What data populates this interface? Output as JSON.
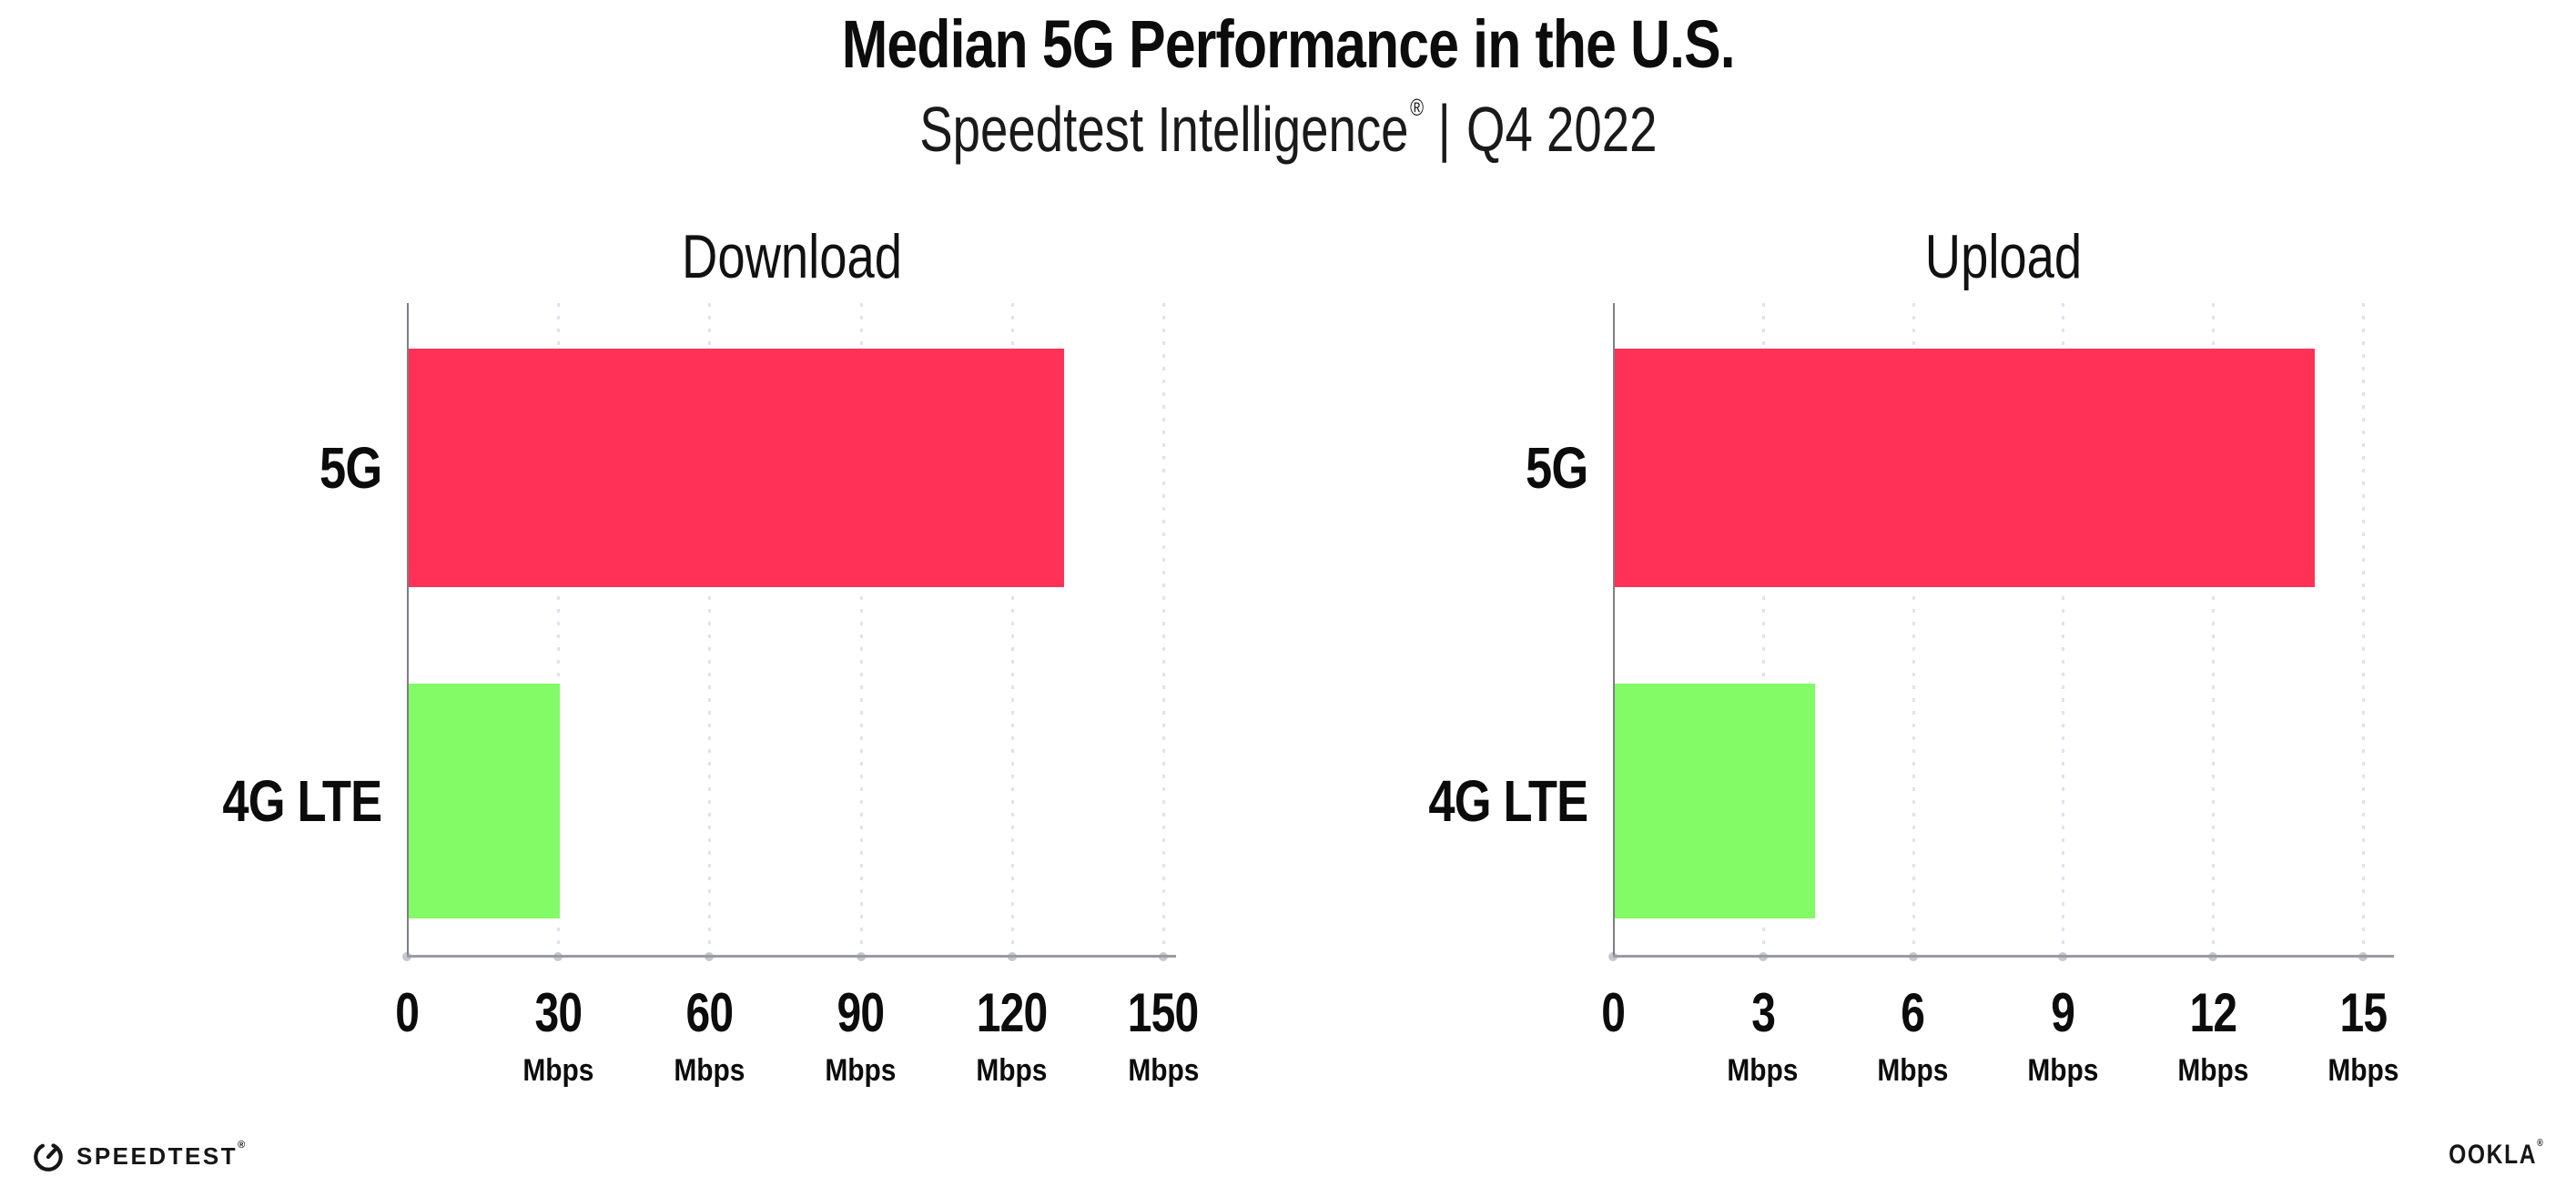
{
  "header": {
    "title": "Median 5G Performance in the U.S.",
    "subtitle_brand": "Speedtest Intelligence",
    "subtitle_registered": "®",
    "subtitle_divider": "|",
    "subtitle_period": "Q4 2022"
  },
  "colors": {
    "bar_5g": "#FF3156",
    "bar_4g_lte": "#82FB66",
    "gridline": "#e2e2ee",
    "x_axis": "#9a9aa2",
    "y_axis": "#7d7d87",
    "text": "#0c0c0c"
  },
  "chart_data": [
    {
      "type": "bar",
      "orientation": "horizontal",
      "title": "Download",
      "categories": [
        "5G",
        "4G LTE"
      ],
      "values": [
        130,
        30
      ],
      "unit": "Mbps",
      "xlim": [
        0,
        150
      ],
      "xticks": [
        0,
        30,
        60,
        90,
        120,
        150
      ],
      "xtick_unit_label": "Mbps",
      "bar_colors": [
        "#FF3156",
        "#82FB66"
      ],
      "grid": "vertical-dotted",
      "legend": "none"
    },
    {
      "type": "bar",
      "orientation": "horizontal",
      "title": "Upload",
      "categories": [
        "5G",
        "4G LTE"
      ],
      "values": [
        14,
        4
      ],
      "unit": "Mbps",
      "xlim": [
        0,
        15
      ],
      "xticks": [
        0,
        3,
        6,
        9,
        12,
        15
      ],
      "xtick_unit_label": "Mbps",
      "bar_colors": [
        "#FF3156",
        "#82FB66"
      ],
      "grid": "vertical-dotted",
      "legend": "none"
    }
  ],
  "footer": {
    "speedtest_label": "SPEEDTEST",
    "speedtest_registered": "®",
    "speedtest_icon": "speedometer-gauge-icon",
    "ookla_label": "OOKLA",
    "ookla_registered": "®"
  }
}
